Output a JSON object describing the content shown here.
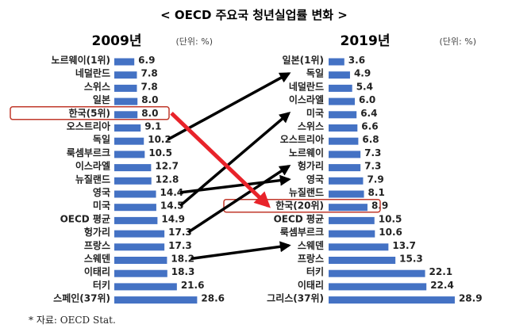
{
  "chart_data": {
    "type": "bar",
    "title": "< OECD 주요국 청년실업률 변화 >",
    "unit_label": "(단위: %)",
    "source": "* 자료: OECD Stat.",
    "bar_color": "#4472C4",
    "highlight_color": "#C0392B",
    "connector_color": "#000000",
    "highlight_arrow_color": "#E8232A",
    "panels": [
      {
        "year": "2009년",
        "categories": [
          "노르웨이(1위)",
          "네덜란드",
          "스위스",
          "일본",
          "한국(5위)",
          "오스트리아",
          "독일",
          "룩셈부르크",
          "이스라엘",
          "뉴질랜드",
          "영국",
          "미국",
          "OECD 평균",
          "헝가리",
          "프랑스",
          "스웨덴",
          "이태리",
          "터키",
          "스페인(37위)"
        ],
        "values": [
          6.9,
          7.8,
          7.8,
          8.0,
          8.0,
          9.1,
          10.2,
          10.5,
          12.7,
          12.8,
          14.4,
          14.5,
          14.9,
          17.3,
          17.3,
          18.2,
          18.3,
          21.6,
          28.6
        ],
        "value_labels": [
          "6.9",
          "7.8",
          "7.8",
          "8.0",
          "8.0",
          "9.1",
          "10.2",
          "10.5",
          "12.7",
          "12.8",
          "14.4",
          "14.5",
          "14.9",
          "17.3",
          "17.3",
          "18.2",
          "18.3",
          "21.6",
          "28.6"
        ],
        "highlight": "한국(5위)"
      },
      {
        "year": "2019년",
        "categories": [
          "일본(1위)",
          "독일",
          "네덜란드",
          "이스라엘",
          "미국",
          "스위스",
          "오스트리아",
          "노르웨이",
          "헝가리",
          "영국",
          "뉴질랜드",
          "한국(20위)",
          "OECD 평균",
          "룩셈부르크",
          "스웨덴",
          "프랑스",
          "터키",
          "이태리",
          "그리스(37위)"
        ],
        "values": [
          3.6,
          4.9,
          5.4,
          6.0,
          6.4,
          6.6,
          6.8,
          7.3,
          7.3,
          7.9,
          8.1,
          8.9,
          10.5,
          10.6,
          13.7,
          15.3,
          22.1,
          22.4,
          28.9
        ],
        "value_labels": [
          "3.6",
          "4.9",
          "5.4",
          "6.0",
          "6.4",
          "6.6",
          "6.8",
          "7.3",
          "7.3",
          "7.9",
          "8.1",
          "8.9",
          "10.5",
          "10.6",
          "13.7",
          "15.3",
          "22.1",
          "22.4",
          "28.9"
        ],
        "highlight": "한국(20위)"
      }
    ],
    "connectors": [
      {
        "from": "독일",
        "to": "독일"
      },
      {
        "from": "영국",
        "to": "영국"
      },
      {
        "from": "미국",
        "to": "미국"
      },
      {
        "from": "헝가리",
        "to": "헝가리"
      },
      {
        "from": "스웨덴",
        "to": "스웨덴"
      },
      {
        "from": "한국(5위)",
        "to": "한국(20위)",
        "highlight": true
      }
    ]
  }
}
